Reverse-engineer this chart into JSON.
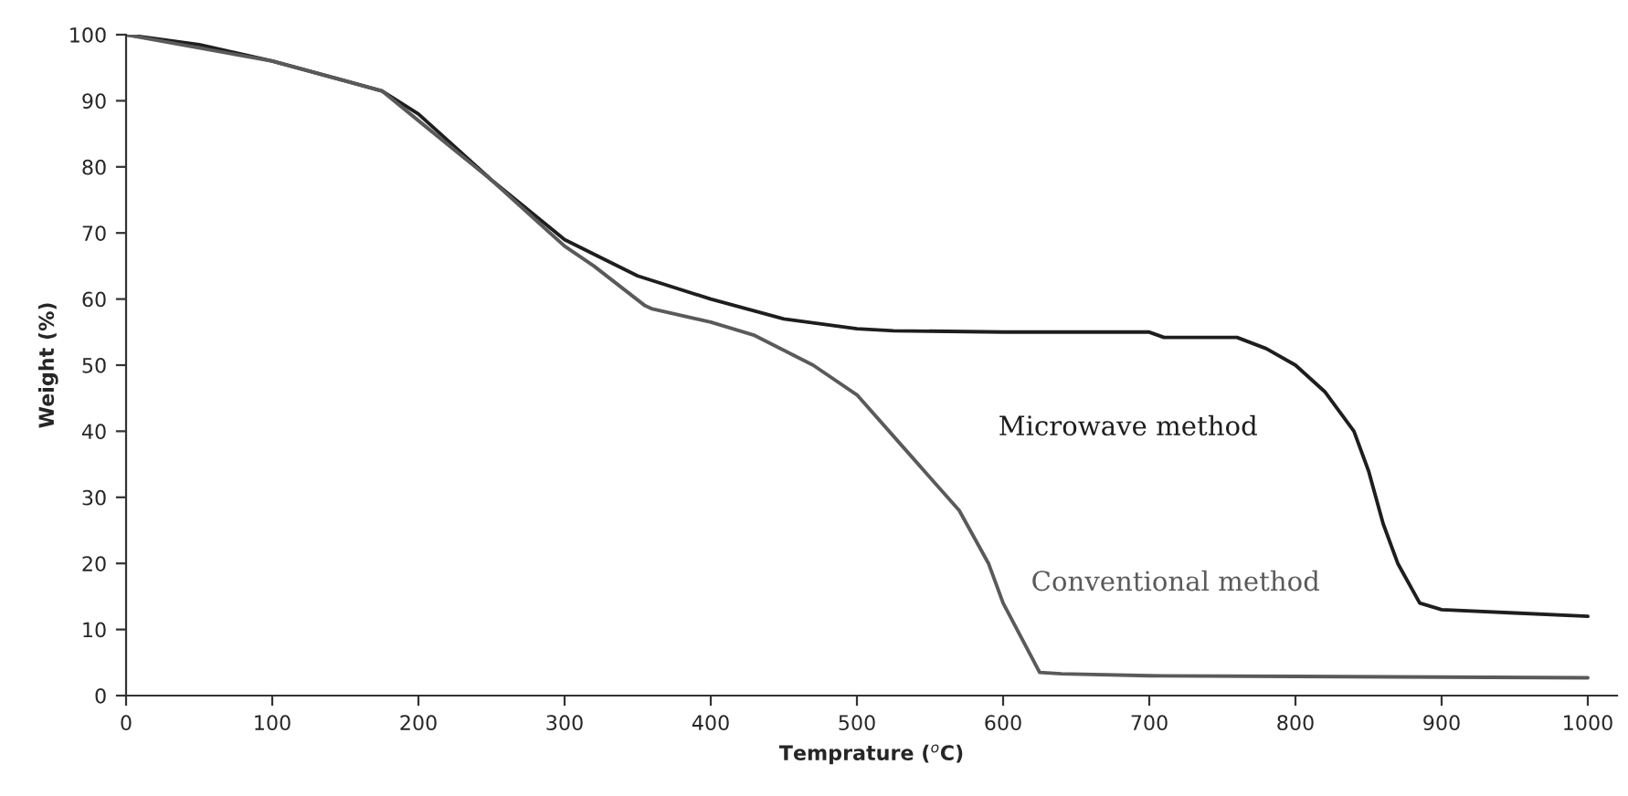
{
  "chart_data": {
    "type": "line",
    "xlabel": "Temprature ($^{o}$C)",
    "ylabel": "Weight (%)",
    "xlim": [
      0,
      1020
    ],
    "ylim": [
      0,
      100
    ],
    "xticks": [
      0,
      100,
      200,
      300,
      400,
      500,
      600,
      700,
      800,
      900,
      1000
    ],
    "yticks": [
      0,
      10,
      20,
      30,
      40,
      50,
      60,
      70,
      80,
      90,
      100
    ],
    "grid": false,
    "legend": false,
    "marker": "none",
    "line_style": "solid",
    "series": [
      {
        "name": "Microwave method",
        "color": "#1e1e1e",
        "x": [
          0,
          50,
          100,
          150,
          175,
          200,
          250,
          300,
          350,
          400,
          450,
          500,
          525,
          600,
          700,
          710,
          760,
          780,
          800,
          820,
          840,
          850,
          860,
          870,
          885,
          900,
          950,
          1000
        ],
        "values": [
          100,
          98.5,
          96,
          93,
          91.5,
          88,
          78,
          69,
          63.5,
          60,
          57,
          55.5,
          55.2,
          55,
          55,
          54.2,
          54.2,
          52.5,
          50,
          46,
          40,
          34,
          26,
          20,
          14,
          13,
          12.5,
          12
        ]
      },
      {
        "name": "Conventional method",
        "color": "#5a5a5a",
        "x": [
          0,
          100,
          150,
          175,
          200,
          250,
          300,
          320,
          355,
          360,
          400,
          430,
          470,
          500,
          530,
          570,
          590,
          600,
          625,
          640,
          700,
          800,
          1000
        ],
        "values": [
          100,
          96,
          93,
          91.5,
          87,
          78,
          68,
          65,
          59,
          58.5,
          56.5,
          54.5,
          50,
          45.5,
          38,
          28,
          20,
          14,
          3.5,
          3.3,
          3,
          2.9,
          2.7
        ]
      }
    ]
  }
}
